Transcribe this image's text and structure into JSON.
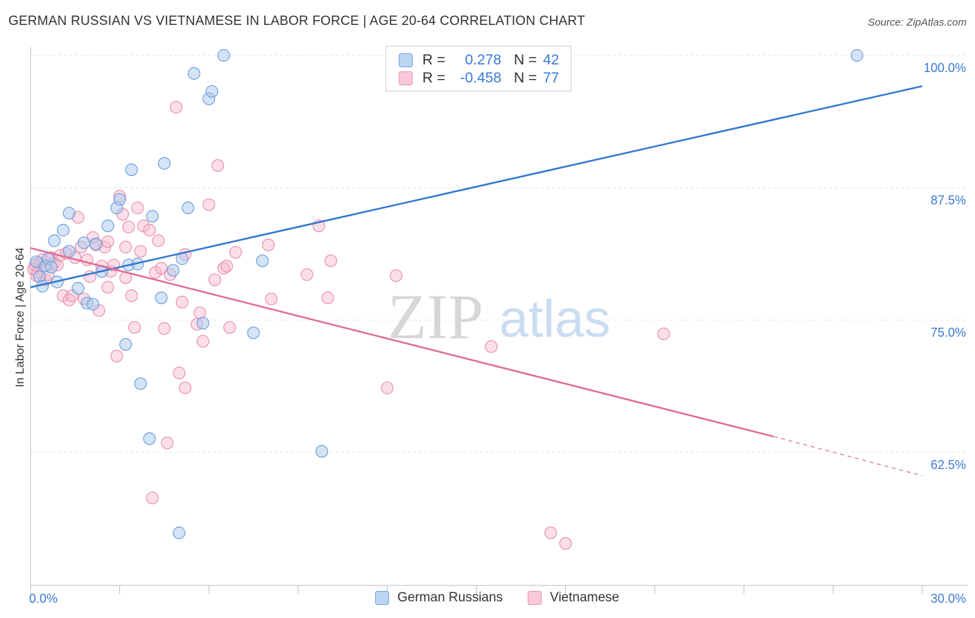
{
  "title": "GERMAN RUSSIAN VS VIETNAMESE IN LABOR FORCE | AGE 20-64 CORRELATION CHART",
  "source": "Source: ZipAtlas.com",
  "watermark": {
    "zip": "ZIP",
    "atlas": "atlas"
  },
  "colors": {
    "blue_fill": "#a9c8ee",
    "blue_stroke": "#6f9fdc",
    "blue_line": "#3276d0",
    "pink_fill": "#f6b8cc",
    "pink_stroke": "#ea8fae",
    "pink_line": "#e06b96",
    "axis_text": "#3a7bd5"
  },
  "legend": {
    "rows": [
      {
        "r_label": "R =",
        "r_value": "0.278",
        "n_label": "N =",
        "n_value": "42",
        "series": "blue"
      },
      {
        "r_label": "R =",
        "r_value": "-0.458",
        "n_label": "N =",
        "n_value": "77",
        "series": "pink"
      }
    ]
  },
  "bottom_legend": {
    "blue": "German Russians",
    "pink": "Vietnamese"
  },
  "chart_data": {
    "type": "scatter",
    "title": "GERMAN RUSSIAN VS VIETNAMESE IN LABOR FORCE | AGE 20-64 CORRELATION CHART",
    "xlabel": "",
    "ylabel": "In Labor Force | Age 20-64",
    "xlim": [
      0,
      30
    ],
    "ylim": [
      50,
      102.5
    ],
    "x_tick_labels": [
      "0.0%",
      "30.0%"
    ],
    "y_ticks": [
      62.5,
      75.0,
      87.5,
      100.0
    ],
    "y_tick_labels": [
      "62.5%",
      "75.0%",
      "87.5%",
      "100.0%"
    ],
    "series": [
      {
        "name": "German Russians",
        "r": 0.278,
        "n": 42,
        "trend": {
          "x0": 0,
          "y0": 78.1,
          "x1": 30,
          "y1": 97.1
        },
        "points": [
          [
            0.2,
            80.5
          ],
          [
            0.3,
            79.1
          ],
          [
            0.4,
            78.2
          ],
          [
            0.5,
            80.1
          ],
          [
            0.6,
            80.8
          ],
          [
            0.7,
            80.0
          ],
          [
            0.8,
            82.5
          ],
          [
            0.9,
            78.6
          ],
          [
            1.1,
            83.5
          ],
          [
            1.3,
            85.1
          ],
          [
            1.3,
            81.5
          ],
          [
            1.6,
            78.0
          ],
          [
            1.8,
            82.3
          ],
          [
            1.9,
            76.6
          ],
          [
            2.1,
            76.5
          ],
          [
            2.2,
            82.2
          ],
          [
            2.4,
            79.6
          ],
          [
            2.6,
            83.9
          ],
          [
            2.9,
            85.6
          ],
          [
            3.0,
            86.4
          ],
          [
            3.2,
            72.7
          ],
          [
            3.3,
            80.2
          ],
          [
            3.4,
            89.2
          ],
          [
            3.6,
            80.3
          ],
          [
            3.7,
            69.0
          ],
          [
            4.0,
            63.8
          ],
          [
            4.1,
            84.8
          ],
          [
            4.4,
            77.1
          ],
          [
            4.5,
            89.8
          ],
          [
            4.8,
            79.7
          ],
          [
            5.0,
            54.9
          ],
          [
            5.1,
            80.8
          ],
          [
            5.3,
            85.6
          ],
          [
            5.5,
            98.3
          ],
          [
            5.8,
            74.7
          ],
          [
            6.0,
            95.9
          ],
          [
            6.1,
            96.6
          ],
          [
            6.5,
            100.0
          ],
          [
            7.5,
            73.8
          ],
          [
            7.8,
            80.6
          ],
          [
            9.8,
            62.6
          ],
          [
            27.8,
            100.0
          ]
        ]
      },
      {
        "name": "Vietnamese",
        "r": -0.458,
        "n": 77,
        "trend": {
          "x0": 0,
          "y0": 81.8,
          "x1": 25.0,
          "y1": 64.0,
          "dashed_to_x": 30,
          "dashed_to_y": 60.3
        },
        "points": [
          [
            0.2,
            79.2
          ],
          [
            0.3,
            80.4
          ],
          [
            0.4,
            80.7
          ],
          [
            0.5,
            78.8
          ],
          [
            0.6,
            79.3
          ],
          [
            0.7,
            80.9
          ],
          [
            0.8,
            80.4
          ],
          [
            0.9,
            80.2
          ],
          [
            1.0,
            81.1
          ],
          [
            1.1,
            77.3
          ],
          [
            1.2,
            81.3
          ],
          [
            1.3,
            76.9
          ],
          [
            1.4,
            77.3
          ],
          [
            1.5,
            80.9
          ],
          [
            1.6,
            84.7
          ],
          [
            1.7,
            81.9
          ],
          [
            1.8,
            77.0
          ],
          [
            1.9,
            80.7
          ],
          [
            2.0,
            79.1
          ],
          [
            2.1,
            82.8
          ],
          [
            2.2,
            82.1
          ],
          [
            2.3,
            75.9
          ],
          [
            2.4,
            80.1
          ],
          [
            2.5,
            81.9
          ],
          [
            2.6,
            82.4
          ],
          [
            2.6,
            78.1
          ],
          [
            2.7,
            79.6
          ],
          [
            2.8,
            80.2
          ],
          [
            2.9,
            71.6
          ],
          [
            3.0,
            86.7
          ],
          [
            3.1,
            85.0
          ],
          [
            3.2,
            81.9
          ],
          [
            3.2,
            79.0
          ],
          [
            3.3,
            83.8
          ],
          [
            3.4,
            77.3
          ],
          [
            3.5,
            74.3
          ],
          [
            3.6,
            85.6
          ],
          [
            3.7,
            81.5
          ],
          [
            3.8,
            83.9
          ],
          [
            4.0,
            83.5
          ],
          [
            4.1,
            58.2
          ],
          [
            4.2,
            79.5
          ],
          [
            4.3,
            82.5
          ],
          [
            4.4,
            79.9
          ],
          [
            4.5,
            74.2
          ],
          [
            4.6,
            63.4
          ],
          [
            4.7,
            79.3
          ],
          [
            4.9,
            95.1
          ],
          [
            5.0,
            70.0
          ],
          [
            5.1,
            76.7
          ],
          [
            5.2,
            81.2
          ],
          [
            5.2,
            68.6
          ],
          [
            5.6,
            74.6
          ],
          [
            5.7,
            75.7
          ],
          [
            5.8,
            73.0
          ],
          [
            6.0,
            85.9
          ],
          [
            6.2,
            78.8
          ],
          [
            6.3,
            89.6
          ],
          [
            6.5,
            79.9
          ],
          [
            6.6,
            80.1
          ],
          [
            6.7,
            74.3
          ],
          [
            6.9,
            81.4
          ],
          [
            8.0,
            82.1
          ],
          [
            8.1,
            77.0
          ],
          [
            9.3,
            79.3
          ],
          [
            9.7,
            83.9
          ],
          [
            10.0,
            77.1
          ],
          [
            10.1,
            80.6
          ],
          [
            12.0,
            68.6
          ],
          [
            12.3,
            79.2
          ],
          [
            15.5,
            72.5
          ],
          [
            17.5,
            54.9
          ],
          [
            18.0,
            53.9
          ],
          [
            21.3,
            73.7
          ],
          [
            0.1,
            79.8
          ],
          [
            0.15,
            80.2
          ],
          [
            0.25,
            79.5
          ]
        ]
      }
    ]
  }
}
